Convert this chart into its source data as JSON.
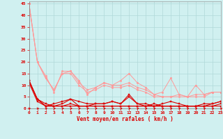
{
  "title": "",
  "xlabel": "Vent moyen/en rafales ( km/h )",
  "xlim": [
    0,
    23
  ],
  "ylim": [
    0,
    46
  ],
  "yticks": [
    0,
    5,
    10,
    15,
    20,
    25,
    30,
    35,
    40,
    45
  ],
  "xticks": [
    0,
    1,
    2,
    3,
    4,
    5,
    6,
    7,
    8,
    9,
    10,
    11,
    12,
    13,
    14,
    15,
    16,
    17,
    18,
    19,
    20,
    21,
    22,
    23
  ],
  "bg_color": "#d0f0f0",
  "grid_color": "#b0d8d8",
  "line_color_light": "#ff9999",
  "line_color_dark": "#dd0000",
  "series_light1": [
    45,
    20,
    14,
    7,
    16,
    16,
    12,
    6,
    9,
    11,
    10,
    12,
    15,
    11,
    9,
    6,
    7,
    13,
    6,
    5,
    10,
    6,
    7,
    7
  ],
  "series_light2": [
    45,
    20,
    13,
    8,
    15,
    16,
    11,
    8,
    9,
    11,
    10,
    10,
    11,
    9,
    8,
    6,
    5,
    5,
    6,
    5,
    6,
    6,
    7,
    7
  ],
  "series_light3": [
    45,
    20,
    13,
    8,
    15,
    15,
    10,
    7,
    8,
    10,
    9,
    9,
    10,
    8,
    7,
    5,
    5,
    5,
    5,
    5,
    5,
    5,
    7,
    7
  ],
  "series_dark1": [
    12,
    4,
    1,
    2,
    3,
    4,
    1,
    1,
    2,
    2,
    3,
    2,
    6,
    2,
    2,
    1,
    2,
    3,
    2,
    1,
    1,
    2,
    2,
    3
  ],
  "series_dark2": [
    12,
    4,
    2,
    1,
    2,
    4,
    3,
    2,
    2,
    2,
    3,
    2,
    5,
    2,
    1,
    2,
    1,
    1,
    1,
    1,
    1,
    1,
    2,
    3
  ],
  "series_dark3": [
    12,
    4,
    1,
    1,
    1,
    2,
    1,
    1,
    1,
    1,
    1,
    1,
    1,
    1,
    1,
    1,
    1,
    1,
    1,
    1,
    1,
    1,
    1,
    2
  ],
  "series_dark4": [
    11,
    3,
    1,
    1,
    1,
    1,
    1,
    1,
    1,
    1,
    1,
    1,
    1,
    1,
    1,
    1,
    1,
    1,
    1,
    1,
    1,
    1,
    1,
    1
  ]
}
